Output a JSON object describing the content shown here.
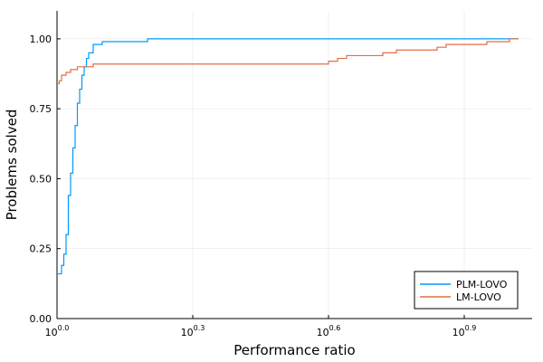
{
  "chart_data": {
    "type": "line",
    "step": true,
    "xscale": "log2",
    "xlabel": "Performance ratio",
    "ylabel": "Problems solved",
    "xlim": [
      0.0,
      1.05
    ],
    "ylim": [
      0.0,
      1.1
    ],
    "grid": true,
    "legend_position": "bottom-right",
    "x_ticks": [
      {
        "base": "10",
        "exp": "0.0",
        "value": 0.0
      },
      {
        "base": "10",
        "exp": "0.3",
        "value": 0.3
      },
      {
        "base": "10",
        "exp": "0.6",
        "value": 0.6
      },
      {
        "base": "10",
        "exp": "0.9",
        "value": 0.9
      }
    ],
    "y_ticks": [
      {
        "label": "0.00",
        "value": 0.0
      },
      {
        "label": "0.25",
        "value": 0.25
      },
      {
        "label": "0.50",
        "value": 0.5
      },
      {
        "label": "0.75",
        "value": 0.75
      },
      {
        "label": "1.00",
        "value": 1.0
      }
    ],
    "series": [
      {
        "name": "PLM-LOVO",
        "color": "#009AFA",
        "x": [
          0.0,
          0.01,
          0.015,
          0.02,
          0.025,
          0.03,
          0.035,
          0.04,
          0.045,
          0.05,
          0.055,
          0.06,
          0.065,
          0.07,
          0.08,
          0.1,
          0.2,
          1.02
        ],
        "y": [
          0.16,
          0.19,
          0.23,
          0.3,
          0.44,
          0.52,
          0.61,
          0.69,
          0.77,
          0.82,
          0.87,
          0.9,
          0.93,
          0.95,
          0.98,
          0.99,
          1.0,
          1.0
        ]
      },
      {
        "name": "LM-LOVO",
        "color": "#E26F46",
        "x": [
          0.0,
          0.005,
          0.01,
          0.02,
          0.03,
          0.045,
          0.08,
          0.57,
          0.6,
          0.62,
          0.64,
          0.72,
          0.75,
          0.8,
          0.84,
          0.86,
          0.95,
          1.0,
          1.02
        ],
        "y": [
          0.84,
          0.85,
          0.87,
          0.88,
          0.89,
          0.9,
          0.91,
          0.91,
          0.92,
          0.93,
          0.94,
          0.95,
          0.96,
          0.96,
          0.97,
          0.98,
          0.99,
          1.0,
          1.0
        ]
      }
    ]
  }
}
